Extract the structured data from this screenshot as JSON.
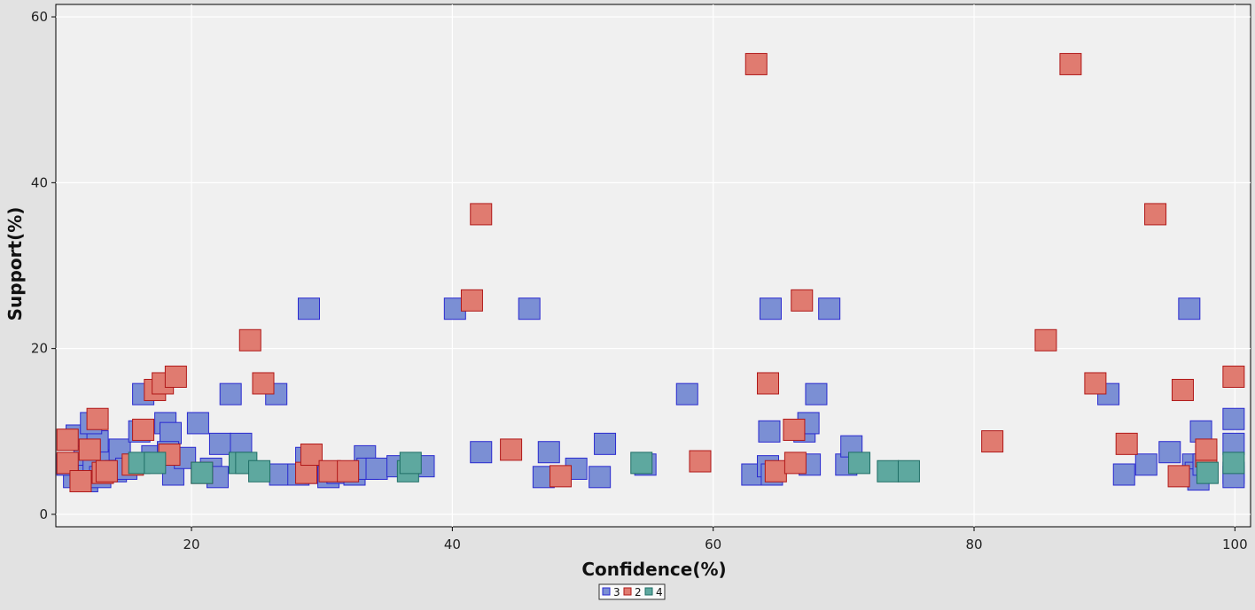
{
  "chart_data": {
    "type": "scatter",
    "xlabel": "Confidence(%)",
    "ylabel": "Support(%)",
    "xlim": [
      9.6,
      101.2
    ],
    "ylim": [
      -1.5,
      61.5
    ],
    "xticks": [
      "20",
      "40",
      "60",
      "80",
      "100"
    ],
    "yticks": [
      "0",
      "20",
      "40",
      "60"
    ],
    "grid": true,
    "legend_position": "bottom-center",
    "series": [
      {
        "name": "3",
        "color": "#7b8fd4",
        "stroke": "#2a2ad0",
        "points": [
          [
            11.0,
            4.5
          ],
          [
            11.5,
            5.0
          ],
          [
            12.0,
            4.0
          ],
          [
            10.5,
            6.0
          ],
          [
            11.8,
            7.2
          ],
          [
            11.2,
            9.5
          ],
          [
            12.5,
            5.8
          ],
          [
            13.0,
            4.5
          ],
          [
            13.5,
            6.5
          ],
          [
            12.8,
            8.8
          ],
          [
            12.3,
            11.0
          ],
          [
            14.2,
            5.2
          ],
          [
            14.5,
            7.8
          ],
          [
            15.0,
            5.5
          ],
          [
            16.3,
            14.5
          ],
          [
            16.0,
            10.0
          ],
          [
            17.0,
            7.0
          ],
          [
            18.0,
            11.0
          ],
          [
            18.4,
            9.8
          ],
          [
            18.2,
            7.5
          ],
          [
            18.6,
            4.8
          ],
          [
            19.5,
            6.8
          ],
          [
            20.5,
            11.0
          ],
          [
            21.5,
            5.5
          ],
          [
            22.0,
            4.5
          ],
          [
            22.2,
            8.5
          ],
          [
            23.0,
            14.5
          ],
          [
            23.8,
            8.5
          ],
          [
            26.5,
            14.5
          ],
          [
            26.8,
            4.8
          ],
          [
            28.2,
            4.8
          ],
          [
            29.0,
            24.8
          ],
          [
            28.8,
            6.8
          ],
          [
            29.5,
            5.0
          ],
          [
            30.5,
            4.5
          ],
          [
            31.2,
            5.0
          ],
          [
            32.5,
            4.8
          ],
          [
            33.3,
            7.0
          ],
          [
            33.5,
            5.5
          ],
          [
            34.2,
            5.5
          ],
          [
            35.8,
            5.8
          ],
          [
            37.8,
            5.8
          ],
          [
            40.2,
            24.8
          ],
          [
            42.2,
            7.5
          ],
          [
            45.9,
            24.8
          ],
          [
            47.0,
            4.5
          ],
          [
            47.4,
            7.5
          ],
          [
            49.5,
            5.5
          ],
          [
            51.3,
            4.5
          ],
          [
            51.7,
            8.5
          ],
          [
            54.8,
            6.0
          ],
          [
            58.0,
            14.5
          ],
          [
            63.0,
            4.8
          ],
          [
            64.2,
            5.8
          ],
          [
            64.3,
            10.0
          ],
          [
            64.4,
            24.8
          ],
          [
            64.5,
            4.8
          ],
          [
            67.0,
            10.0
          ],
          [
            67.3,
            11.0
          ],
          [
            67.4,
            6.0
          ],
          [
            67.9,
            14.5
          ],
          [
            68.9,
            24.8
          ],
          [
            70.2,
            6.0
          ],
          [
            70.6,
            8.2
          ],
          [
            90.3,
            14.5
          ],
          [
            91.5,
            4.8
          ],
          [
            93.2,
            6.0
          ],
          [
            95.0,
            7.5
          ],
          [
            96.5,
            24.8
          ],
          [
            96.8,
            6.0
          ],
          [
            97.0,
            5.0
          ],
          [
            97.2,
            4.2
          ],
          [
            97.4,
            10.0
          ],
          [
            97.6,
            6.0
          ],
          [
            99.9,
            11.5
          ],
          [
            99.9,
            8.5
          ],
          [
            99.9,
            5.0
          ],
          [
            99.9,
            4.5
          ]
        ]
      },
      {
        "name": "2",
        "color": "#e07b70",
        "stroke": "#b01818",
        "points": [
          [
            10.5,
            9.0
          ],
          [
            10.5,
            6.2
          ],
          [
            11.5,
            4.0
          ],
          [
            12.2,
            7.8
          ],
          [
            12.8,
            11.5
          ],
          [
            13.2,
            5.0
          ],
          [
            13.5,
            5.2
          ],
          [
            15.5,
            6.0
          ],
          [
            16.3,
            10.2
          ],
          [
            17.2,
            15.0
          ],
          [
            17.8,
            15.8
          ],
          [
            18.3,
            7.2
          ],
          [
            18.8,
            16.6
          ],
          [
            20.8,
            5.0
          ],
          [
            24.5,
            21.0
          ],
          [
            25.5,
            15.8
          ],
          [
            28.8,
            5.0
          ],
          [
            29.2,
            7.2
          ],
          [
            30.6,
            5.2
          ],
          [
            32.0,
            5.2
          ],
          [
            41.5,
            25.8
          ],
          [
            42.2,
            36.2
          ],
          [
            44.5,
            7.8
          ],
          [
            48.3,
            4.6
          ],
          [
            59.0,
            6.4
          ],
          [
            63.3,
            54.3
          ],
          [
            64.2,
            15.8
          ],
          [
            64.8,
            5.2
          ],
          [
            66.2,
            10.2
          ],
          [
            66.3,
            6.2
          ],
          [
            66.8,
            25.8
          ],
          [
            81.4,
            8.8
          ],
          [
            85.5,
            21.0
          ],
          [
            87.4,
            54.3
          ],
          [
            89.3,
            15.8
          ],
          [
            91.7,
            8.5
          ],
          [
            93.9,
            36.2
          ],
          [
            95.7,
            4.6
          ],
          [
            96.0,
            15.0
          ],
          [
            97.8,
            7.0
          ],
          [
            97.8,
            7.8
          ],
          [
            99.9,
            16.6
          ]
        ]
      },
      {
        "name": "4",
        "color": "#5ea89f",
        "stroke": "#1f6e66",
        "points": [
          [
            16.0,
            6.2
          ],
          [
            17.2,
            6.2
          ],
          [
            20.8,
            5.0
          ],
          [
            23.7,
            6.2
          ],
          [
            24.2,
            6.2
          ],
          [
            25.2,
            5.2
          ],
          [
            36.6,
            5.2
          ],
          [
            36.8,
            6.2
          ],
          [
            54.5,
            6.2
          ],
          [
            71.2,
            6.2
          ],
          [
            73.4,
            5.2
          ],
          [
            75.0,
            5.2
          ],
          [
            97.9,
            5.0
          ],
          [
            99.9,
            6.2
          ]
        ]
      }
    ]
  }
}
